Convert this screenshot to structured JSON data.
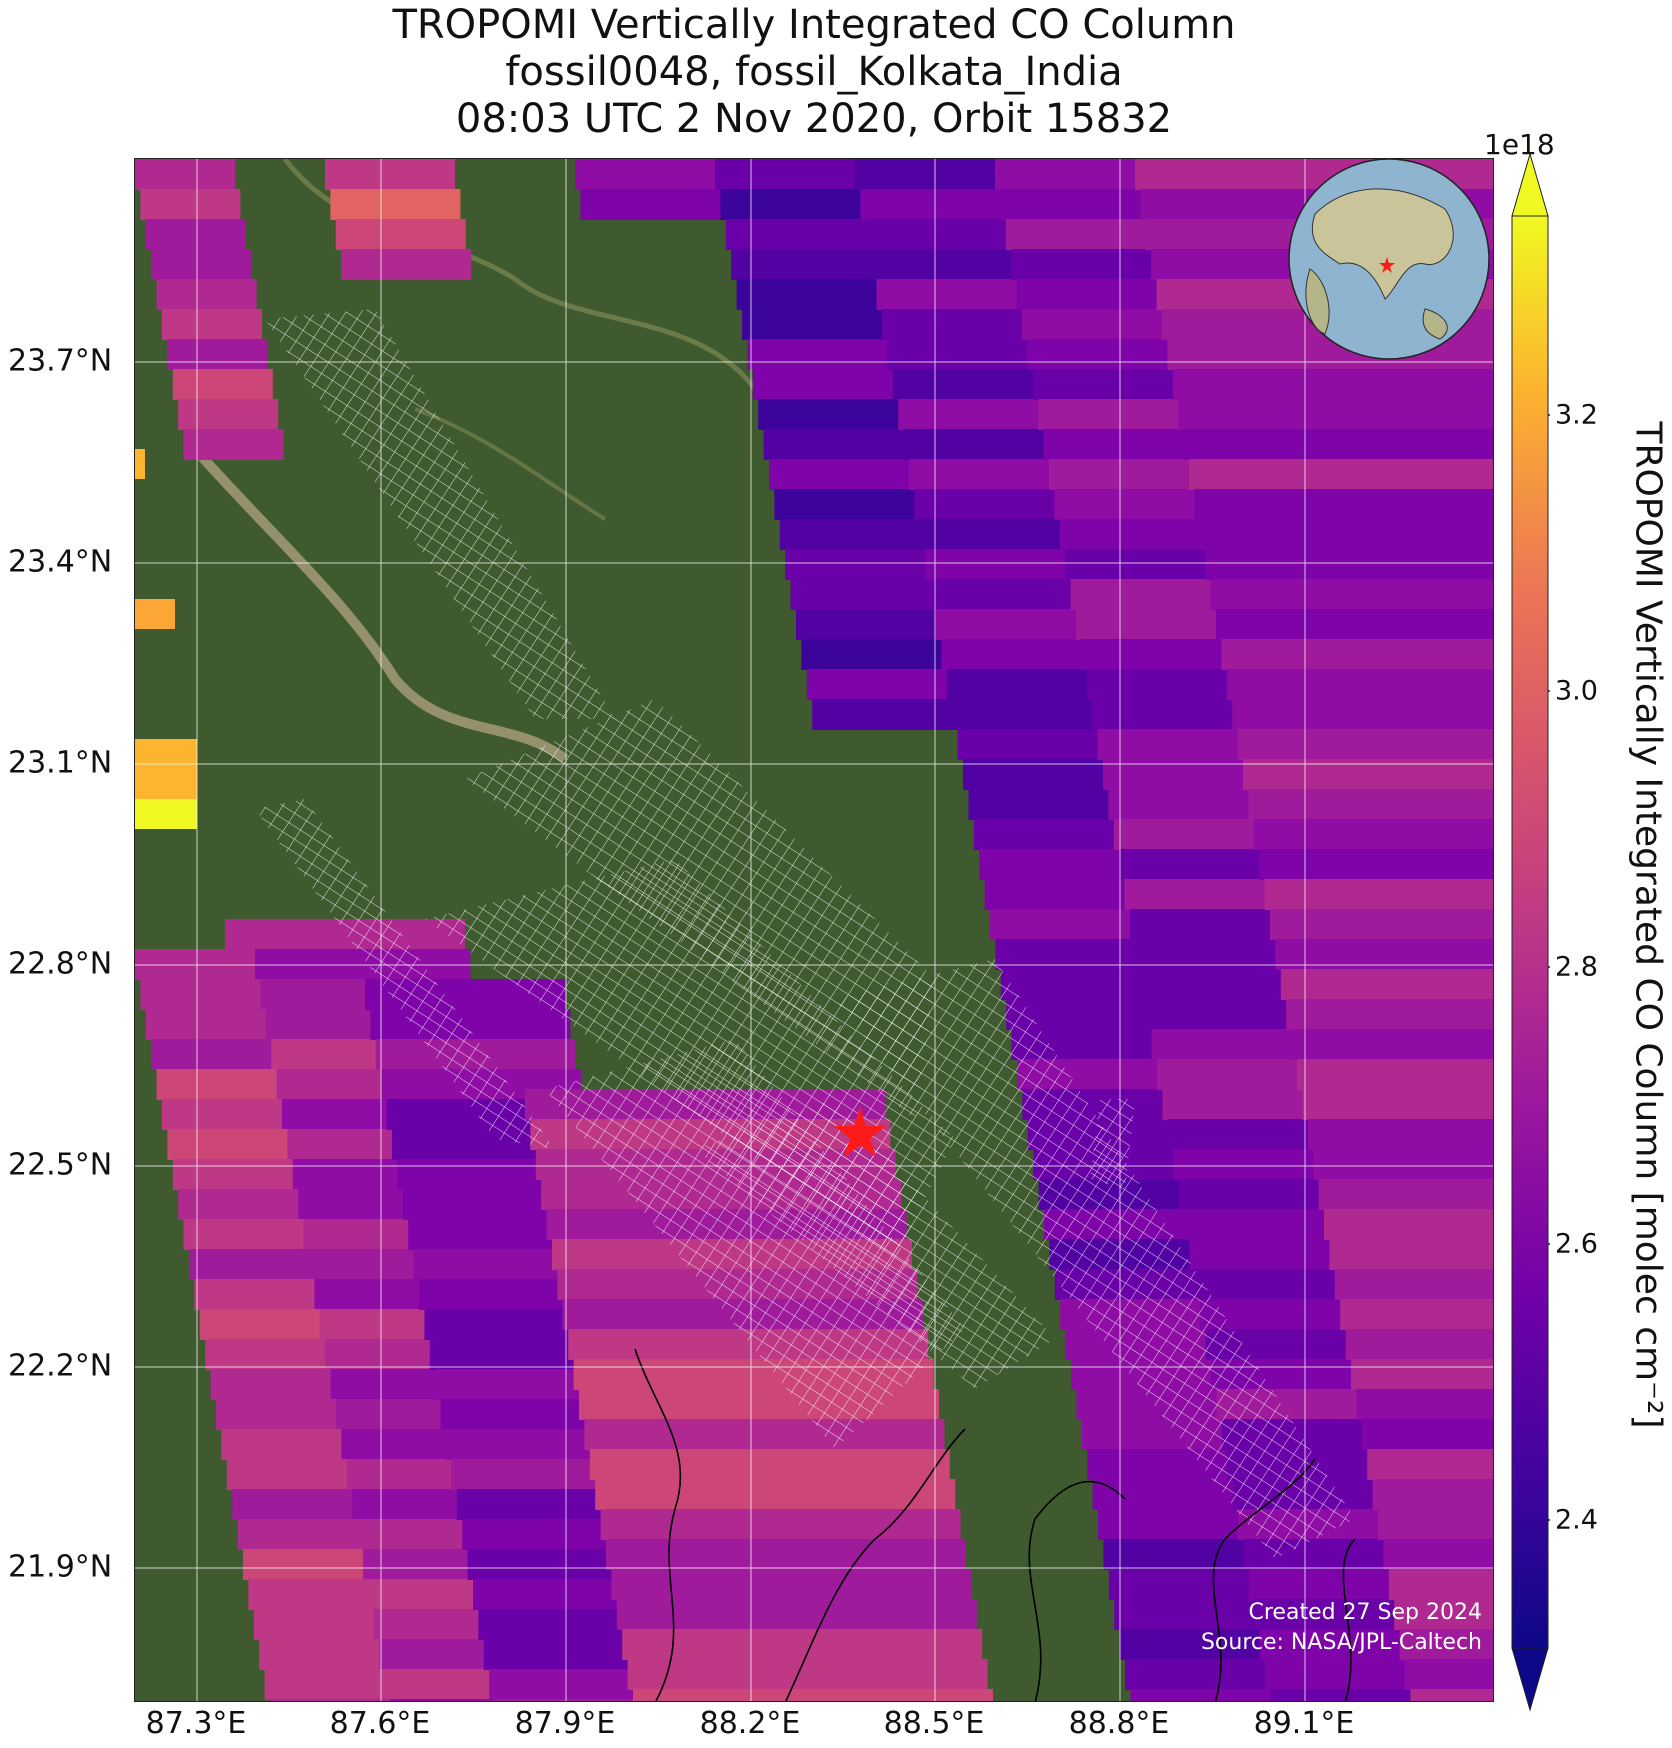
{
  "title": {
    "line1": "TROPOMI Vertically Integrated CO Column",
    "line2": "fossil0048, fossil_Kolkata_India",
    "line3": "08:03 UTC 2 Nov 2020, Orbit 15832"
  },
  "map": {
    "lon_ticks": [
      "87.3°E",
      "87.6°E",
      "87.9°E",
      "88.2°E",
      "88.5°E",
      "88.8°E",
      "89.1°E"
    ],
    "lat_ticks": [
      "23.7°N",
      "23.4°N",
      "23.1°N",
      "22.8°N",
      "22.5°N",
      "22.2°N",
      "21.9°N"
    ],
    "target_marker": "red-star",
    "inset": "globe-locator-map"
  },
  "credits": {
    "created": "Created 27 Sep 2024",
    "source": "Source: NASA/JPL-Caltech"
  },
  "colorbar": {
    "multiplier": "1e18",
    "label": "TROPOMI Vertically Integrated CO Column [molec cm⁻²]",
    "ticks": [
      "2.4",
      "2.6",
      "2.8",
      "3.0",
      "3.2"
    ],
    "range": [
      2.32,
      3.35
    ],
    "colormap": "plasma",
    "extend": "both"
  }
}
